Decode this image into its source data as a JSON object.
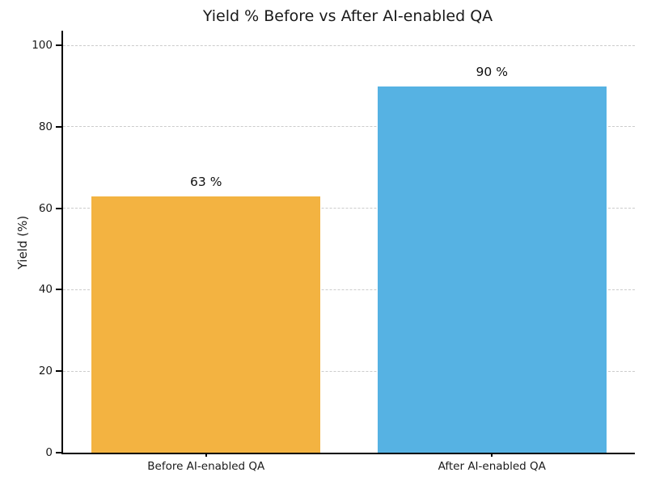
{
  "chart_data": {
    "type": "bar",
    "title": "Yield % Before vs After AI-enabled QA",
    "ylabel": "Yield (%)",
    "xlabel": "",
    "categories": [
      "Before AI-enabled QA",
      "After AI-enabled QA"
    ],
    "values": [
      63,
      90
    ],
    "value_labels": [
      "63 %",
      "90 %"
    ],
    "bar_colors": [
      "#F3B341",
      "#56B2E3"
    ],
    "yticks": [
      0,
      20,
      40,
      60,
      80,
      100
    ],
    "ylim": [
      0,
      103.6
    ],
    "bar_width_fraction": 0.8,
    "grid": {
      "axis": "y",
      "style": "dashed",
      "color": "#cccccc"
    },
    "legend": "none",
    "background": "#ffffff",
    "axis_color": "#000000",
    "text_color": "#1a1a1a"
  }
}
